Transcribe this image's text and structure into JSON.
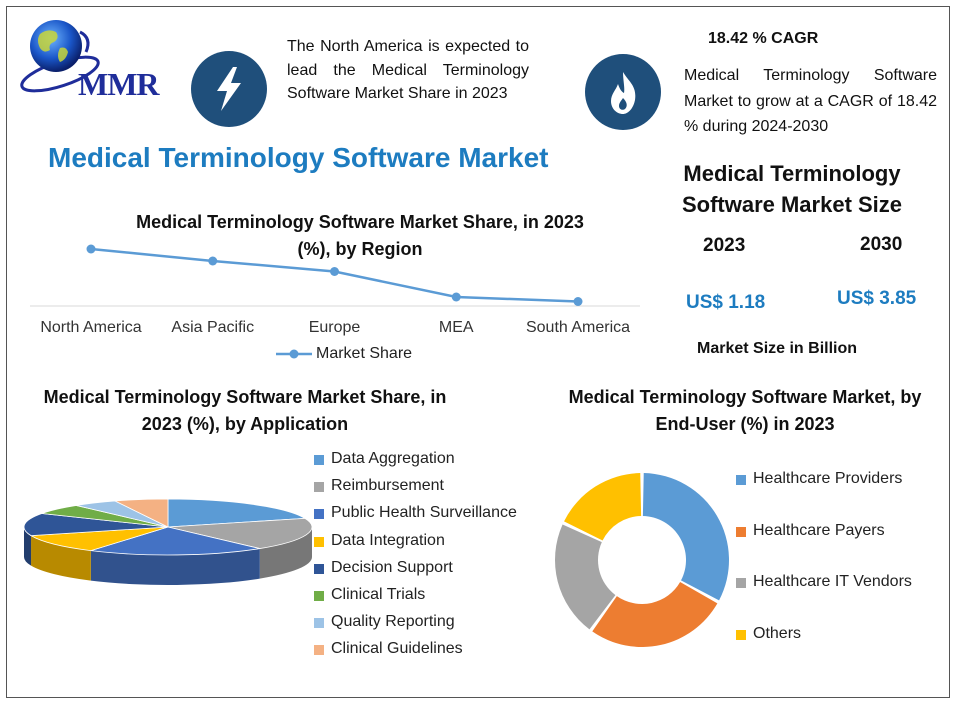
{
  "header": {
    "logo_text": "MMR",
    "note_left": "The North America is expected to lead the Medical Terminology Software Market Share in 2023",
    "cagr_label": "18.42 % CAGR",
    "note_right": "Medical Terminology Software Market to grow at a CAGR of 18.42 % during 2024-2030",
    "icon_left": "lightning-icon",
    "icon_right": "flame-icon"
  },
  "main_title": "Medical Terminology Software Market",
  "market_size": {
    "title": "Medical Terminology Software Market Size",
    "year_start": "2023",
    "year_end": "2030",
    "value_start": "US$ 1.18",
    "value_end": "US$ 3.85",
    "unit": "Market Size in Billion"
  },
  "colors": {
    "accent_blue": "#1d7cc0",
    "icon_bg": "#1f4f7b",
    "line": "#5b9bd5"
  },
  "chart_data": [
    {
      "type": "line",
      "title": "Medical Terminology Software Market Share, in 2023 (%), by Region",
      "categories": [
        "North America",
        "Asia Pacific",
        "Europe",
        "MEA",
        "South America"
      ],
      "series": [
        {
          "name": "Market Share",
          "values": [
            38,
            30,
            23,
            6,
            3
          ]
        }
      ],
      "ylim": [
        0,
        40
      ],
      "grid": false,
      "legend": "bottom"
    },
    {
      "type": "pie",
      "title": "Medical Terminology Software Market Share, in 2023 (%), by Application",
      "categories": [
        "Data Aggregation",
        "Reimbursement",
        "Public Health Surveillance",
        "Data Integration",
        "Decision Support",
        "Clinical Trials",
        "Quality Reporting",
        "Clinical Guidelines"
      ],
      "values": [
        20,
        19,
        20,
        11,
        13,
        6,
        5,
        6
      ],
      "colors": [
        "#5b9bd5",
        "#a5a5a5",
        "#4472c4",
        "#ffc000",
        "#2f5597",
        "#70ad47",
        "#9dc3e6",
        "#f4b183"
      ],
      "legend": "right"
    },
    {
      "type": "pie",
      "title": "Medical Terminology Software Market, by End-User (%) in 2023",
      "categories": [
        "Healthcare Providers",
        "Healthcare Payers",
        "Healthcare IT Vendors",
        "Others"
      ],
      "values": [
        33,
        27,
        22,
        18
      ],
      "colors": [
        "#5b9bd5",
        "#ed7d31",
        "#a5a5a5",
        "#ffc000"
      ],
      "legend": "right"
    }
  ]
}
